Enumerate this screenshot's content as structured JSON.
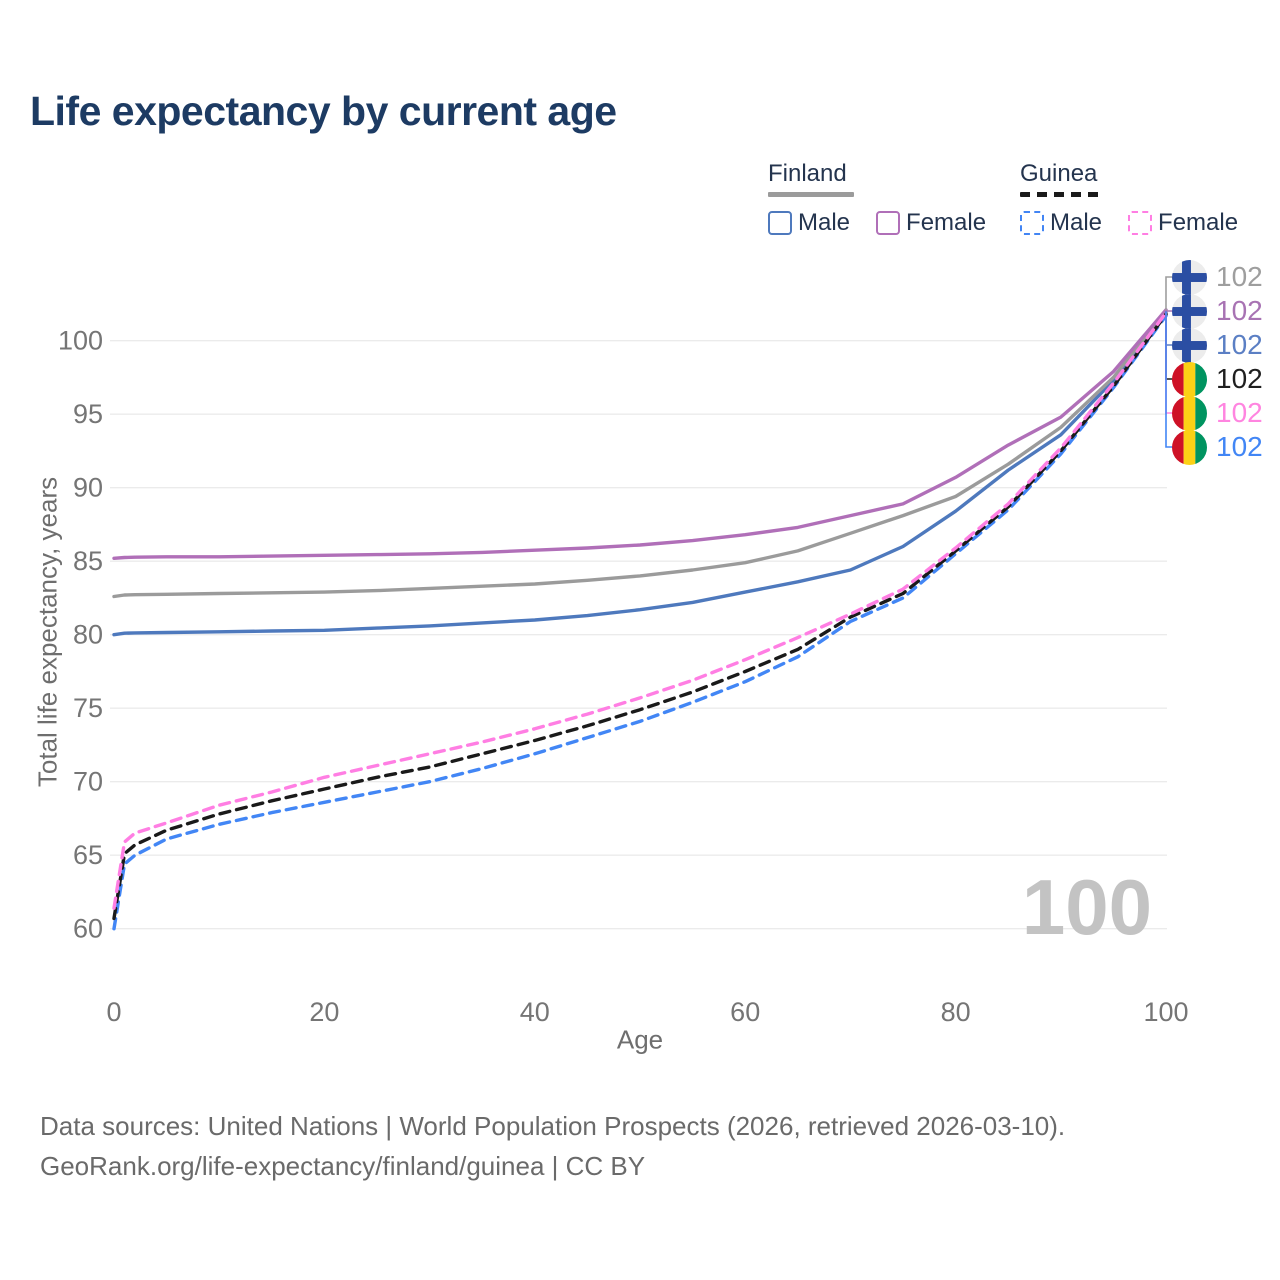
{
  "title": "Life expectancy by current age",
  "legend": {
    "groups": [
      {
        "country": "Finland",
        "line_style": "solid",
        "line_color": "#9b9b9b",
        "items": [
          {
            "label": "Male",
            "color": "#4e79bd"
          },
          {
            "label": "Female",
            "color": "#b06fb8"
          }
        ]
      },
      {
        "country": "Guinea",
        "line_style": "dashed",
        "line_color": "#1a1a1a",
        "items": [
          {
            "label": "Male",
            "color": "#4285f4"
          },
          {
            "label": "Female",
            "color": "#ff7ee3"
          }
        ]
      }
    ]
  },
  "watermark_age": "100",
  "end_labels": [
    {
      "flag": "finland-flag",
      "value": "102",
      "color": "#9e9e9e",
      "series": "Finland Total"
    },
    {
      "flag": "finland-flag",
      "value": "102",
      "color": "#a873b3",
      "series": "Finland Female"
    },
    {
      "flag": "finland-flag",
      "value": "102",
      "color": "#5b7fc4",
      "series": "Finland Male"
    },
    {
      "flag": "guinea-flag",
      "value": "102",
      "color": "#1f1f1f",
      "series": "Guinea Total"
    },
    {
      "flag": "guinea-flag",
      "value": "102",
      "color": "#ff85e0",
      "series": "Guinea Female"
    },
    {
      "flag": "guinea-flag",
      "value": "102",
      "color": "#4286f5",
      "series": "Guinea Male"
    }
  ],
  "flag_colors": {
    "finland_bg": "#ececec",
    "finland_cross": "#2b4ea3",
    "guinea_red": "#ce1126",
    "guinea_yellow": "#fcd116",
    "guinea_green": "#009460"
  },
  "footer": {
    "line1": "Data sources: United Nations | World Population Prospects (2026, retrieved 2026-03-10).",
    "line2": "GeoRank.org/life-expectancy/finland/guinea | CC BY"
  },
  "chart_data": {
    "type": "line",
    "title": "Life expectancy by current age",
    "xlabel": "Age",
    "ylabel": "Total life expectancy, years",
    "xlim": [
      0,
      100
    ],
    "ylim": [
      60,
      102.5
    ],
    "x_ticks": [
      0,
      20,
      40,
      60,
      80,
      100
    ],
    "y_ticks": [
      60,
      65,
      70,
      75,
      80,
      85,
      90,
      95,
      100
    ],
    "grid": "horizontal-only",
    "legend_position": "top-right",
    "ages": [
      0,
      1,
      2,
      5,
      10,
      15,
      20,
      25,
      30,
      35,
      40,
      45,
      50,
      55,
      60,
      65,
      70,
      75,
      80,
      85,
      90,
      95,
      100
    ],
    "series": [
      {
        "name": "Finland Male",
        "country": "Finland",
        "sex": "Male",
        "style": "solid",
        "color": "#4e79bd",
        "end_value": 102,
        "values": [
          80.0,
          80.1,
          80.12,
          80.15,
          80.2,
          80.25,
          80.3,
          80.45,
          80.6,
          80.8,
          81.0,
          81.3,
          81.7,
          82.2,
          82.9,
          83.6,
          84.4,
          86.0,
          88.4,
          91.2,
          93.6,
          97.3,
          101.9
        ]
      },
      {
        "name": "Finland Total",
        "country": "Finland",
        "sex": "Both",
        "style": "solid",
        "color": "#9b9b9b",
        "end_value": 102,
        "values": [
          82.6,
          82.7,
          82.72,
          82.75,
          82.8,
          82.85,
          82.9,
          83.0,
          83.15,
          83.3,
          83.45,
          83.7,
          84.0,
          84.4,
          84.9,
          85.7,
          86.9,
          88.1,
          89.4,
          91.6,
          94.1,
          97.5,
          102.0
        ]
      },
      {
        "name": "Finland Female",
        "country": "Finland",
        "sex": "Female",
        "style": "solid",
        "color": "#b06fb8",
        "end_value": 102,
        "values": [
          85.2,
          85.25,
          85.27,
          85.3,
          85.3,
          85.35,
          85.4,
          85.45,
          85.5,
          85.6,
          85.75,
          85.9,
          86.1,
          86.4,
          86.8,
          87.3,
          88.1,
          88.9,
          90.7,
          92.9,
          94.8,
          97.9,
          102.1
        ]
      },
      {
        "name": "Guinea Male",
        "country": "Guinea",
        "sex": "Male",
        "style": "dashed",
        "color": "#4286f5",
        "end_value": 102,
        "values": [
          60.0,
          64.4,
          65.0,
          66.1,
          67.1,
          67.9,
          68.6,
          69.3,
          70.0,
          70.9,
          71.9,
          73.0,
          74.1,
          75.4,
          76.8,
          78.5,
          80.9,
          82.5,
          85.5,
          88.5,
          92.3,
          96.8,
          101.7
        ]
      },
      {
        "name": "Guinea Total",
        "country": "Guinea",
        "sex": "Both",
        "style": "dashed",
        "color": "#1a1a1a",
        "end_value": 102,
        "values": [
          60.7,
          65.1,
          65.7,
          66.7,
          67.8,
          68.7,
          69.5,
          70.3,
          71.0,
          71.9,
          72.8,
          73.8,
          74.9,
          76.1,
          77.5,
          79.0,
          81.2,
          82.8,
          85.7,
          88.7,
          92.5,
          96.9,
          101.8
        ]
      },
      {
        "name": "Guinea Female",
        "country": "Guinea",
        "sex": "Female",
        "style": "dashed",
        "color": "#ff7ee3",
        "end_value": 102,
        "values": [
          61.4,
          65.9,
          66.5,
          67.2,
          68.4,
          69.3,
          70.3,
          71.1,
          71.9,
          72.7,
          73.6,
          74.6,
          75.7,
          76.9,
          78.3,
          79.8,
          81.4,
          83.1,
          85.9,
          88.9,
          92.7,
          97.1,
          101.9
        ]
      }
    ]
  }
}
